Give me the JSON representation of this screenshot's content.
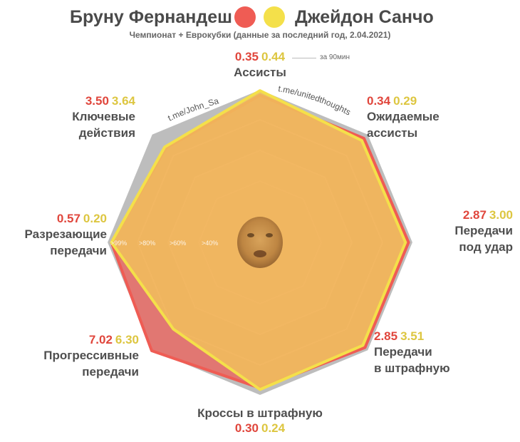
{
  "header": {
    "player1": "Бруну Фернандеш",
    "player2": "Джейдон Санчо",
    "subtitle": "Чемпионат + Еврокубки (данные за последний год, 2.04.2021)",
    "unit_note": "за 90мин"
  },
  "colors": {
    "player1": "#ef5c54",
    "player2": "#f4e04a",
    "player1_text": "#e0463c",
    "player2_text": "#ddc640",
    "background_ring": "#bdbdbd"
  },
  "watermarks": {
    "left": "t.me/John_Sa",
    "right": "t.me/unitedthoughts"
  },
  "ring_labels": [
    ">99%",
    ">80%",
    ">60%",
    ">40%"
  ],
  "chart_data": {
    "type": "radar",
    "title": "Бруну Фернандеш vs Джейдон Санчо",
    "series": [
      {
        "name": "Бруну Фернандеш",
        "percentiles": [
          96,
          96,
          97,
          97,
          95,
          100,
          97,
          87
        ]
      },
      {
        "name": "Джейдон Санчо",
        "percentiles": [
          99,
          94,
          95,
          95,
          96,
          80,
          97,
          88
        ]
      }
    ],
    "axes": [
      {
        "name": "Ассисты",
        "value1": "0.35",
        "value2": "0.44"
      },
      {
        "name": "Ожидаемые ассисты",
        "name_lines": [
          "Ожидаемые",
          "ассисты"
        ],
        "value1": "0.34",
        "value2": "0.29"
      },
      {
        "name": "Передачи под удар",
        "name_lines": [
          "Передачи",
          "под удар"
        ],
        "value1": "2.87",
        "value2": "3.00"
      },
      {
        "name": "Передачи в штрафную",
        "name_lines": [
          "Передачи",
          "в штрафную"
        ],
        "value1": "2.85",
        "value2": "3.51"
      },
      {
        "name": "Кроссы в штрафную",
        "value1": "0.30",
        "value2": "0.24"
      },
      {
        "name": "Прогрессивные передачи",
        "name_lines": [
          "Прогрессивные",
          "передачи"
        ],
        "value1": "7.02",
        "value2": "6.30"
      },
      {
        "name": "Разрезающие передачи",
        "name_lines": [
          "Разрезающие",
          "передачи"
        ],
        "value1": "0.57",
        "value2": "0.20"
      },
      {
        "name": "Ключевые действия",
        "name_lines": [
          "Ключевые",
          "действия"
        ],
        "value1": "3.50",
        "value2": "3.64"
      }
    ]
  }
}
